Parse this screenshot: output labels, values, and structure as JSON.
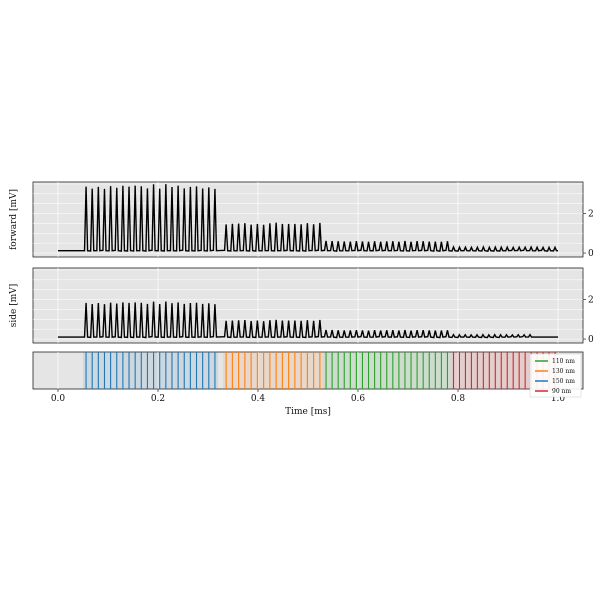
{
  "chart_data": [
    {
      "type": "line",
      "panel": "forward",
      "ylabel": "forward [mV]",
      "xlim": [
        -0.05,
        1.05
      ],
      "ylim": [
        -0.2,
        3.6
      ],
      "y_ticks": [
        0,
        2
      ],
      "grid": true,
      "baseline_mV": 0.12,
      "series": [
        {
          "pulse_groups": [
            {
              "start": 0.05,
              "end": 0.32,
              "count": 22,
              "peak_mV": 3.4
            },
            {
              "start": 0.33,
              "end": 0.53,
              "count": 16,
              "peak_mV": 1.5
            },
            {
              "start": 0.53,
              "end": 0.785,
              "count": 21,
              "peak_mV": 0.6
            },
            {
              "start": 0.785,
              "end": 1.0,
              "count": 18,
              "peak_mV": 0.3
            }
          ]
        }
      ]
    },
    {
      "type": "line",
      "panel": "side",
      "ylabel": "side [mV]",
      "xlim": [
        -0.05,
        1.05
      ],
      "ylim": [
        -0.2,
        3.6
      ],
      "y_ticks": [
        0,
        2
      ],
      "grid": true,
      "baseline_mV": 0.1,
      "series": [
        {
          "pulse_groups": [
            {
              "start": 0.05,
              "end": 0.32,
              "count": 22,
              "peak_mV": 1.85
            },
            {
              "start": 0.33,
              "end": 0.53,
              "count": 16,
              "peak_mV": 0.95
            },
            {
              "start": 0.53,
              "end": 0.785,
              "count": 21,
              "peak_mV": 0.45
            },
            {
              "start": 0.785,
              "end": 0.95,
              "count": 14,
              "peak_mV": 0.22
            }
          ]
        }
      ]
    },
    {
      "type": "event",
      "panel": "sizes",
      "xlabel": "Time [ms]",
      "xlim": [
        -0.05,
        1.05
      ],
      "x_ticks": [
        0.0,
        0.2,
        0.4,
        0.6,
        0.8,
        1.0
      ],
      "legend_position": "lower-right",
      "series": [
        {
          "name": "110 nm",
          "color": "#2ca02c",
          "start": 0.53,
          "end": 0.785,
          "count": 21
        },
        {
          "name": "130 nm",
          "color": "#ff7f0e",
          "start": 0.33,
          "end": 0.53,
          "count": 16
        },
        {
          "name": "150 nm",
          "color": "#1f77b4",
          "start": 0.05,
          "end": 0.32,
          "count": 22
        },
        {
          "name": "90 nm",
          "color": "#d62728",
          "start": 0.785,
          "end": 1.0,
          "count": 18
        }
      ]
    }
  ]
}
